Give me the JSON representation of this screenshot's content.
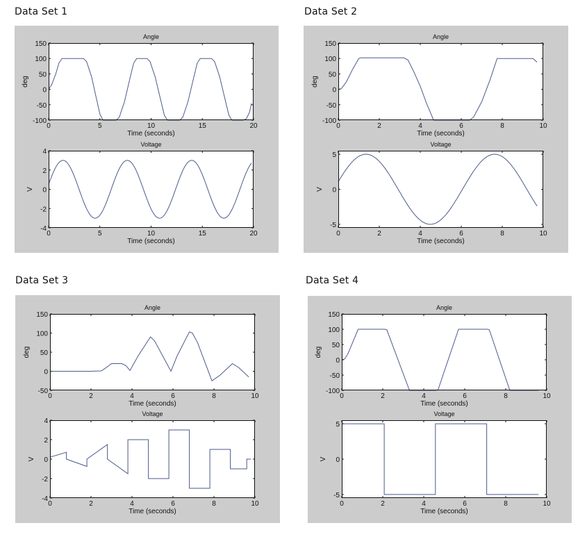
{
  "figure": {
    "line_color": "#4a5a8c",
    "panel_bg": "#cccccc",
    "axes_bg": "#ffffff"
  },
  "chart_data": [
    {
      "id": "ds1",
      "label": "Data Set 1",
      "subplots": [
        {
          "type": "line",
          "title": "Angle",
          "xlabel": "Time (seconds)",
          "ylabel": "deg",
          "xlim": [
            0,
            20
          ],
          "ylim": [
            -100,
            150
          ],
          "xticks": [
            0,
            5,
            10,
            15,
            20
          ],
          "yticks": [
            -100,
            -50,
            0,
            50,
            100,
            150
          ],
          "grid": false,
          "x": [
            0,
            0.3,
            0.7,
            1.0,
            1.3,
            1.5,
            3.4,
            3.7,
            4.2,
            4.6,
            5.0,
            5.3,
            6.6,
            6.9,
            7.4,
            7.9,
            8.3,
            8.6,
            9.6,
            9.9,
            10.4,
            10.9,
            11.3,
            11.6,
            12.8,
            13.1,
            13.6,
            14.1,
            14.5,
            14.8,
            15.9,
            16.2,
            16.7,
            17.2,
            17.6,
            17.9,
            19.0,
            19.3,
            19.6,
            19.8
          ],
          "y": [
            0,
            15,
            50,
            85,
            100,
            100,
            100,
            90,
            40,
            -20,
            -80,
            -100,
            -100,
            -90,
            -40,
            30,
            85,
            100,
            100,
            90,
            40,
            -30,
            -85,
            -100,
            -100,
            -90,
            -40,
            30,
            85,
            100,
            100,
            90,
            40,
            -30,
            -85,
            -100,
            -100,
            -95,
            -75,
            -45
          ]
        },
        {
          "type": "line",
          "title": "Voltage",
          "xlabel": "Time (seconds)",
          "ylabel": "V",
          "xlim": [
            0,
            20
          ],
          "ylim": [
            -4,
            4
          ],
          "xticks": [
            0,
            5,
            10,
            15,
            20
          ],
          "yticks": [
            -4,
            -2,
            0,
            2,
            4
          ],
          "grid": false,
          "function": {
            "kind": "sine",
            "amplitude": 3,
            "period": 6.28,
            "phase_x_of_peak": 1.4,
            "x_end": 19.8
          }
        }
      ]
    },
    {
      "id": "ds2",
      "label": "Data Set 2",
      "subplots": [
        {
          "type": "line",
          "title": "Angle",
          "xlabel": "Time (seconds)",
          "ylabel": "deg",
          "xlim": [
            0,
            10
          ],
          "ylim": [
            -100,
            150
          ],
          "xticks": [
            0,
            2,
            4,
            6,
            8,
            10
          ],
          "yticks": [
            -100,
            -50,
            0,
            50,
            100,
            150
          ],
          "grid": false,
          "x": [
            0,
            0.15,
            0.4,
            0.7,
            1.0,
            1.1,
            3.2,
            3.4,
            3.7,
            4.0,
            4.3,
            4.65,
            6.4,
            6.6,
            7.0,
            7.4,
            7.75,
            9.5,
            9.7
          ],
          "y": [
            0,
            2,
            25,
            65,
            100,
            102,
            102,
            95,
            55,
            10,
            -45,
            -100,
            -100,
            -90,
            -40,
            30,
            100,
            100,
            88
          ]
        },
        {
          "type": "line",
          "title": "Voltage",
          "xlabel": "Time (seconds)",
          "ylabel": "V",
          "xlim": [
            0,
            10
          ],
          "ylim": [
            -5.5,
            5.5
          ],
          "xticks": [
            0,
            2,
            4,
            6,
            8,
            10
          ],
          "yticks": [
            -5,
            0,
            5
          ],
          "grid": false,
          "function": {
            "kind": "sine",
            "amplitude": 5,
            "period": 6.28,
            "phase_x_of_peak": 1.35,
            "x_end": 9.7
          }
        }
      ]
    },
    {
      "id": "ds3",
      "label": "Data Set 3",
      "subplots": [
        {
          "type": "line",
          "title": "Angle",
          "xlabel": "Time (seconds)",
          "ylabel": "deg",
          "xlim": [
            0,
            10
          ],
          "ylim": [
            -50,
            150
          ],
          "xticks": [
            0,
            2,
            4,
            6,
            8,
            10
          ],
          "yticks": [
            -50,
            0,
            50,
            100,
            150
          ],
          "grid": false,
          "x": [
            0,
            1.0,
            2.0,
            2.5,
            2.7,
            3.0,
            3.5,
            3.7,
            3.9,
            4.3,
            4.9,
            5.1,
            5.9,
            6.2,
            6.8,
            6.95,
            7.2,
            7.9,
            8.3,
            8.9,
            9.2,
            9.7
          ],
          "y": [
            0,
            0,
            0,
            1,
            8,
            20,
            20,
            15,
            2,
            40,
            90,
            80,
            0,
            40,
            103,
            100,
            75,
            -25,
            -10,
            20,
            10,
            -15
          ]
        },
        {
          "type": "line",
          "title": "Voltage",
          "xlabel": "Time (seconds)",
          "ylabel": "V",
          "xlim": [
            0,
            10
          ],
          "ylim": [
            -4,
            4
          ],
          "xticks": [
            0,
            2,
            4,
            6,
            8,
            10
          ],
          "yticks": [
            -4,
            -2,
            0,
            2,
            4
          ],
          "grid": false,
          "x": [
            0,
            0.8,
            0.8,
            1.8,
            1.8,
            2.8,
            2.8,
            3.8,
            3.8,
            4.8,
            4.8,
            5.8,
            5.8,
            6.8,
            6.8,
            7.8,
            7.8,
            8.8,
            8.8,
            9.6,
            9.6,
            9.8
          ],
          "y": [
            0.2,
            0.7,
            0,
            -0.75,
            0,
            1.5,
            0,
            -1.5,
            2,
            2,
            -2,
            -2,
            3,
            3,
            -3,
            -3,
            1,
            1,
            -1,
            -1,
            0,
            0
          ]
        }
      ]
    },
    {
      "id": "ds4",
      "label": "Data Set 4",
      "subplots": [
        {
          "type": "line",
          "title": "Angle",
          "xlabel": "Time (seconds)",
          "ylabel": "deg",
          "xlim": [
            0,
            10
          ],
          "ylim": [
            -100,
            150
          ],
          "xticks": [
            0,
            2,
            4,
            6,
            8,
            10
          ],
          "yticks": [
            -100,
            -50,
            0,
            50,
            100,
            150
          ],
          "grid": false,
          "x": [
            0,
            0.15,
            0.3,
            0.8,
            2.1,
            2.2,
            3.3,
            4.6,
            4.7,
            5.7,
            7.1,
            7.2,
            8.2,
            9.6
          ],
          "y": [
            0,
            3,
            20,
            100,
            100,
            98,
            -100,
            -100,
            -98,
            100,
            100,
            98,
            -100,
            -100
          ]
        },
        {
          "type": "line",
          "title": "Voltage",
          "xlabel": "Time (seconds)",
          "ylabel": "V",
          "xlim": [
            0,
            10
          ],
          "ylim": [
            -5.5,
            5.5
          ],
          "xticks": [
            0,
            2,
            4,
            6,
            8,
            10
          ],
          "yticks": [
            -5,
            0,
            5
          ],
          "grid": false,
          "x": [
            0,
            2.07,
            2.07,
            4.57,
            4.57,
            7.07,
            7.07,
            9.6
          ],
          "y": [
            5,
            5,
            -5,
            -5,
            5,
            5,
            -5,
            -5
          ]
        }
      ]
    }
  ]
}
